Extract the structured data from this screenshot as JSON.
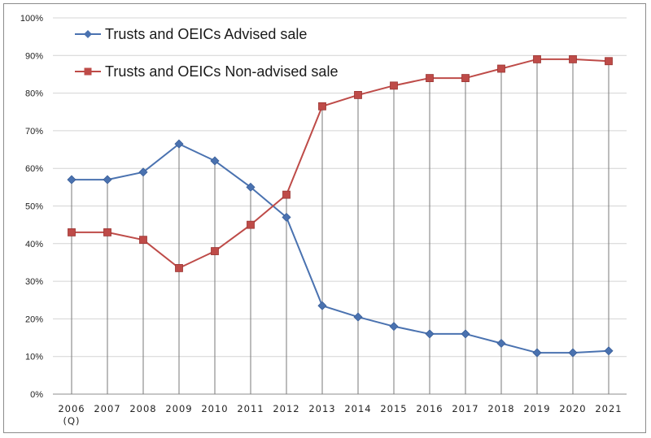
{
  "chart_data": {
    "type": "line",
    "categories": [
      "2006",
      "2007",
      "2008",
      "2009",
      "2010",
      "2011",
      "2012",
      "2013",
      "2014",
      "2015",
      "2016",
      "2017",
      "2018",
      "2019",
      "2020",
      "2021"
    ],
    "category_sublabels": [
      "(Q)",
      "",
      "",
      "",
      "",
      "",
      "",
      "",
      "",
      "",
      "",
      "",
      "",
      "",
      "",
      ""
    ],
    "series": [
      {
        "name": "Trusts and OEICs Advised sale",
        "color": "#4a72b0",
        "marker": "diamond",
        "values": [
          57,
          57,
          59,
          66.5,
          62,
          55,
          47,
          23.5,
          20.5,
          18,
          16,
          16,
          13.5,
          11,
          11,
          11.5
        ]
      },
      {
        "name": "Trusts and OEICs Non-advised sale",
        "color": "#be4b48",
        "marker": "square",
        "values": [
          43,
          43,
          41,
          33.5,
          38,
          45,
          53,
          76.5,
          79.5,
          82,
          84,
          84,
          86.5,
          89,
          89,
          88.5
        ]
      }
    ],
    "ylim": [
      0,
      100
    ],
    "yticks": [
      "0%",
      "10%",
      "20%",
      "30%",
      "40%",
      "50%",
      "60%",
      "70%",
      "80%",
      "90%",
      "100%"
    ],
    "grid": "horizontal and vertical",
    "legend_position": "top-left"
  }
}
